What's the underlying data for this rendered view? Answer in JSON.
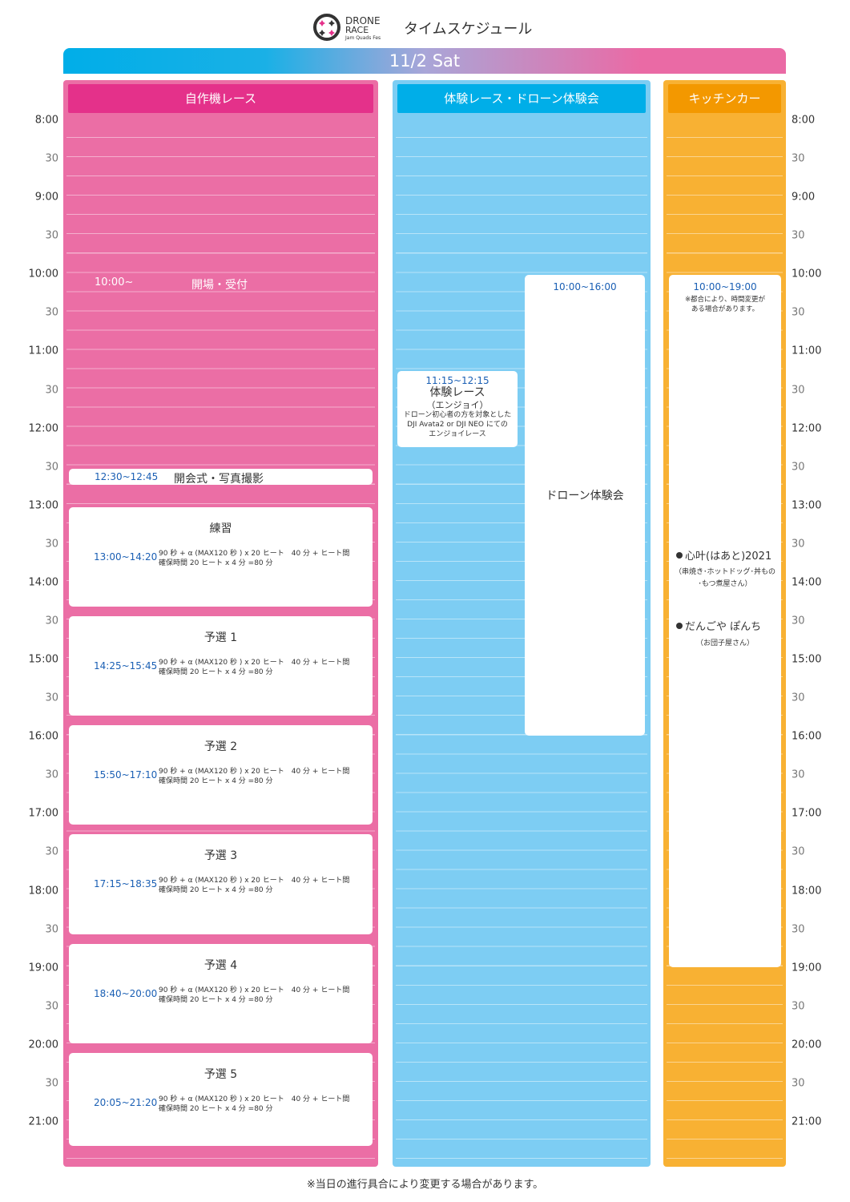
{
  "header": {
    "logo_text": [
      "DRONE",
      "RACE",
      "Jam Quads Fes"
    ],
    "title": "タイムスケジュール",
    "date": "11/2 Sat"
  },
  "time_axis": {
    "start": "8:00",
    "end": "21:30",
    "labels": [
      "8:00",
      "30",
      "9:00",
      "30",
      "10:00",
      "30",
      "11:00",
      "30",
      "12:00",
      "30",
      "13:00",
      "30",
      "14:00",
      "30",
      "15:00",
      "30",
      "16:00",
      "30",
      "17:00",
      "30",
      "18:00",
      "30",
      "19:00",
      "30",
      "20:00",
      "30",
      "21:00"
    ]
  },
  "colors": {
    "pink": "#eb6ea5",
    "pink_header": "#e4318a",
    "blue": "#7dcdf3",
    "blue_header": "#00aee8",
    "orange": "#f8b133",
    "orange_header": "#f39800",
    "time_text": "#1a5fb4"
  },
  "columns": [
    {
      "title": "自作機レース"
    },
    {
      "title": "体験レース・ドローン体験会"
    },
    {
      "title": "キッチンカー"
    }
  ],
  "self_built": {
    "opening": {
      "time": "10:00~",
      "label": "開場・受付"
    },
    "ceremony": {
      "time": "12:30~12:45",
      "label": "開会式・写真撮影",
      "start": "12:30",
      "end": "12:45"
    },
    "sessions": [
      {
        "title": "練習",
        "time": "13:00~14:20",
        "start": "13:00",
        "end": "14:20"
      },
      {
        "title": "予選 1",
        "time": "14:25~15:45",
        "start": "14:25",
        "end": "15:45"
      },
      {
        "title": "予選 2",
        "time": "15:50~17:10",
        "start": "15:50",
        "end": "17:10"
      },
      {
        "title": "予選 3",
        "time": "17:15~18:35",
        "start": "17:15",
        "end": "18:35"
      },
      {
        "title": "予選 4",
        "time": "18:40~20:00",
        "start": "18:40",
        "end": "20:00"
      },
      {
        "title": "予選 5",
        "time": "20:05~21:20",
        "start": "20:05",
        "end": "21:20"
      }
    ],
    "detail_line1": "90 秒 + α (MAX120 秒 ) x 20 ヒート　40 分 + ヒート間",
    "detail_line2": "確保時間 20 ヒート x 4 分 =80 分"
  },
  "experience": {
    "race": {
      "time": "11:15~12:15",
      "title": "体験レース",
      "subtitle": "（エンジョイ）",
      "desc": [
        "ドローン初心者の方を対象とした",
        "DJI Avata2 or DJI NEO にての",
        "エンジョイレース"
      ],
      "start": "11:15",
      "end": "12:15"
    },
    "drone": {
      "time": "10:00~16:00",
      "title": "ドローン体験会",
      "start": "10:00",
      "end": "16:00"
    }
  },
  "kitchen": {
    "time": "10:00~19:00",
    "start": "10:00",
    "end": "19:00",
    "note": [
      "※都合により、時間変更が",
      "ある場合があります。"
    ],
    "vendors": [
      {
        "name": "心叶(はあと)2021",
        "desc": [
          "（串焼き･ホットドッグ･丼もの",
          "･もつ煮屋さん）"
        ]
      },
      {
        "name": "だんごや ぽんち",
        "desc": [
          "（お団子屋さん）"
        ]
      }
    ]
  },
  "footer": "※当日の進行具合により変更する場合があります。"
}
